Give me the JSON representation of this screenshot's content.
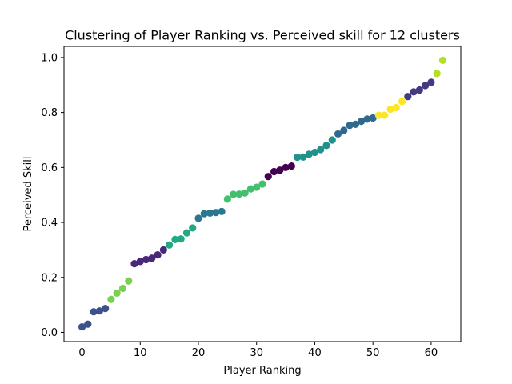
{
  "chart_data": {
    "type": "scatter",
    "title": "Clustering of Player Ranking vs. Perceived skill for 12 clusters",
    "xlabel": "Player Ranking",
    "ylabel": "Perceived Skill",
    "xlim": [
      -3.1,
      65.1
    ],
    "ylim": [
      -0.0335,
      1.0405
    ],
    "xticks": [
      0,
      10,
      20,
      30,
      40,
      50,
      60
    ],
    "yticks": [
      0.0,
      0.2,
      0.4,
      0.6,
      0.8,
      1.0
    ],
    "xtick_labels": [
      "0",
      "10",
      "20",
      "30",
      "40",
      "50",
      "60"
    ],
    "ytick_labels": [
      "0.0",
      "0.2",
      "0.4",
      "0.6",
      "0.8",
      "1.0"
    ],
    "grid": false,
    "colormap": "viridis",
    "points": [
      {
        "x": 0,
        "y": 0.02,
        "color": "#3b528b"
      },
      {
        "x": 1,
        "y": 0.03,
        "color": "#3b528b"
      },
      {
        "x": 2,
        "y": 0.075,
        "color": "#3b528b"
      },
      {
        "x": 3,
        "y": 0.078,
        "color": "#3b528b"
      },
      {
        "x": 4,
        "y": 0.087,
        "color": "#3b528b"
      },
      {
        "x": 5,
        "y": 0.12,
        "color": "#7ad151"
      },
      {
        "x": 6,
        "y": 0.143,
        "color": "#7ad151"
      },
      {
        "x": 7,
        "y": 0.16,
        "color": "#7ad151"
      },
      {
        "x": 8,
        "y": 0.187,
        "color": "#7ad151"
      },
      {
        "x": 9,
        "y": 0.25,
        "color": "#482878"
      },
      {
        "x": 10,
        "y": 0.258,
        "color": "#482878"
      },
      {
        "x": 11,
        "y": 0.265,
        "color": "#482878"
      },
      {
        "x": 12,
        "y": 0.27,
        "color": "#482878"
      },
      {
        "x": 13,
        "y": 0.282,
        "color": "#482878"
      },
      {
        "x": 14,
        "y": 0.3,
        "color": "#482878"
      },
      {
        "x": 15,
        "y": 0.318,
        "color": "#22a884"
      },
      {
        "x": 16,
        "y": 0.338,
        "color": "#22a884"
      },
      {
        "x": 17,
        "y": 0.34,
        "color": "#22a884"
      },
      {
        "x": 18,
        "y": 0.362,
        "color": "#22a884"
      },
      {
        "x": 19,
        "y": 0.38,
        "color": "#22a884"
      },
      {
        "x": 20,
        "y": 0.415,
        "color": "#2a788e"
      },
      {
        "x": 21,
        "y": 0.432,
        "color": "#2a788e"
      },
      {
        "x": 22,
        "y": 0.434,
        "color": "#2a788e"
      },
      {
        "x": 23,
        "y": 0.436,
        "color": "#2a788e"
      },
      {
        "x": 24,
        "y": 0.44,
        "color": "#2a788e"
      },
      {
        "x": 25,
        "y": 0.485,
        "color": "#44bf70"
      },
      {
        "x": 26,
        "y": 0.502,
        "color": "#44bf70"
      },
      {
        "x": 27,
        "y": 0.503,
        "color": "#44bf70"
      },
      {
        "x": 28,
        "y": 0.507,
        "color": "#44bf70"
      },
      {
        "x": 29,
        "y": 0.522,
        "color": "#44bf70"
      },
      {
        "x": 30,
        "y": 0.528,
        "color": "#44bf70"
      },
      {
        "x": 31,
        "y": 0.54,
        "color": "#44bf70"
      },
      {
        "x": 32,
        "y": 0.567,
        "color": "#440154"
      },
      {
        "x": 33,
        "y": 0.585,
        "color": "#440154"
      },
      {
        "x": 34,
        "y": 0.59,
        "color": "#440154"
      },
      {
        "x": 35,
        "y": 0.6,
        "color": "#440154"
      },
      {
        "x": 36,
        "y": 0.605,
        "color": "#440154"
      },
      {
        "x": 37,
        "y": 0.637,
        "color": "#21918c"
      },
      {
        "x": 38,
        "y": 0.638,
        "color": "#21918c"
      },
      {
        "x": 39,
        "y": 0.648,
        "color": "#21918c"
      },
      {
        "x": 40,
        "y": 0.655,
        "color": "#21918c"
      },
      {
        "x": 41,
        "y": 0.665,
        "color": "#21918c"
      },
      {
        "x": 42,
        "y": 0.68,
        "color": "#21918c"
      },
      {
        "x": 43,
        "y": 0.7,
        "color": "#21918c"
      },
      {
        "x": 44,
        "y": 0.722,
        "color": "#31688e"
      },
      {
        "x": 45,
        "y": 0.735,
        "color": "#31688e"
      },
      {
        "x": 46,
        "y": 0.753,
        "color": "#31688e"
      },
      {
        "x": 47,
        "y": 0.757,
        "color": "#31688e"
      },
      {
        "x": 48,
        "y": 0.768,
        "color": "#31688e"
      },
      {
        "x": 49,
        "y": 0.776,
        "color": "#31688e"
      },
      {
        "x": 50,
        "y": 0.78,
        "color": "#31688e"
      },
      {
        "x": 51,
        "y": 0.79,
        "color": "#fde725"
      },
      {
        "x": 52,
        "y": 0.79,
        "color": "#fde725"
      },
      {
        "x": 53,
        "y": 0.812,
        "color": "#fde725"
      },
      {
        "x": 54,
        "y": 0.818,
        "color": "#fde725"
      },
      {
        "x": 55,
        "y": 0.84,
        "color": "#fde725"
      },
      {
        "x": 56,
        "y": 0.858,
        "color": "#443983"
      },
      {
        "x": 57,
        "y": 0.875,
        "color": "#443983"
      },
      {
        "x": 58,
        "y": 0.882,
        "color": "#443983"
      },
      {
        "x": 59,
        "y": 0.898,
        "color": "#443983"
      },
      {
        "x": 60,
        "y": 0.91,
        "color": "#443983"
      },
      {
        "x": 61,
        "y": 0.942,
        "color": "#b5de2b"
      },
      {
        "x": 62,
        "y": 0.99,
        "color": "#b5de2b"
      }
    ]
  }
}
